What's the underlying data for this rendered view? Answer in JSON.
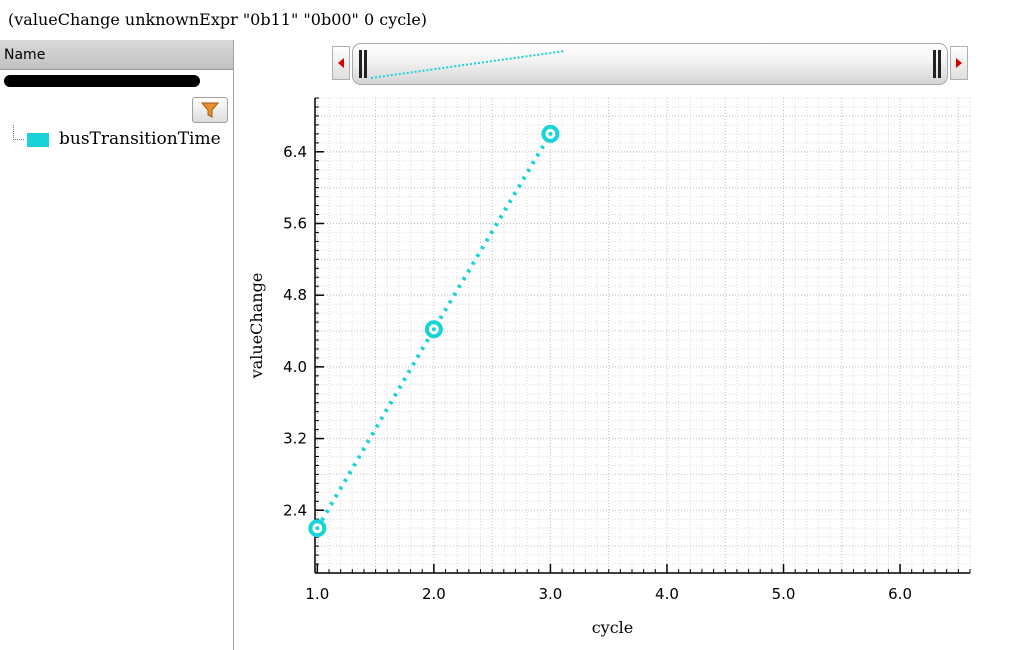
{
  "header": {
    "title": "(valueChange unknownExpr \"0b11\" \"0b00\" 0 cycle)"
  },
  "left_panel": {
    "column_header": "Name",
    "legend": [
      {
        "label": "busTransitionTime",
        "color": "#19d3d6"
      }
    ],
    "filter_icon": "funnel-icon"
  },
  "chart_data": {
    "type": "line",
    "title": "",
    "xlabel": "cycle",
    "ylabel": "valueChange",
    "x_ticks": [
      "1.0",
      "2.0",
      "3.0",
      "4.0",
      "5.0",
      "6.0"
    ],
    "y_ticks": [
      "2.4",
      "3.2",
      "4.0",
      "4.8",
      "5.6",
      "6.4"
    ],
    "xlim": [
      0.98,
      6.6
    ],
    "ylim": [
      1.7,
      7.0
    ],
    "grid": true,
    "legend_position": "left-panel",
    "series": [
      {
        "name": "busTransitionTime",
        "color": "#19d3d6",
        "x": [
          1.0,
          2.0,
          3.0
        ],
        "y": [
          2.2,
          4.42,
          6.6
        ]
      }
    ]
  }
}
